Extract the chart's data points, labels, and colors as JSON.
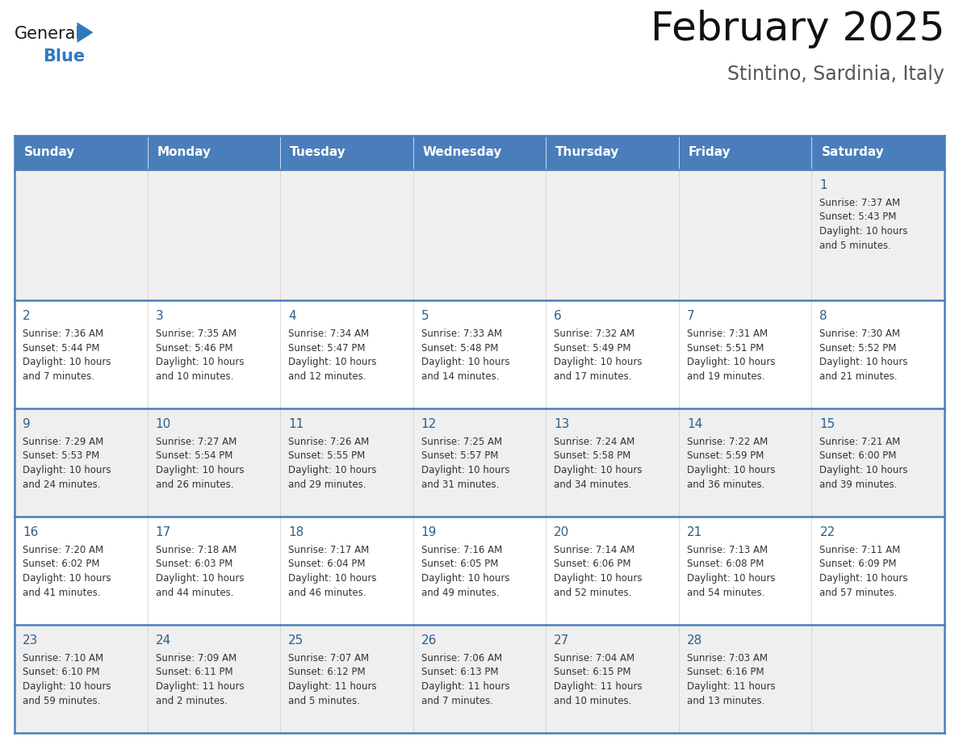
{
  "title": "February 2025",
  "subtitle": "Stintino, Sardinia, Italy",
  "header_bg": "#4a7ebb",
  "header_text": "#ffffff",
  "day_names": [
    "Sunday",
    "Monday",
    "Tuesday",
    "Wednesday",
    "Thursday",
    "Friday",
    "Saturday"
  ],
  "row_bg_odd": "#efefef",
  "row_bg_even": "#ffffff",
  "text_color": "#333333",
  "date_color": "#2c5f8a",
  "border_color": "#4a7ebb",
  "row_border_color": "#4a7ebb",
  "logo_general_color": "#1a1a1a",
  "logo_blue_color": "#2e7abf",
  "calendar_data": [
    [
      null,
      null,
      null,
      null,
      null,
      null,
      {
        "day": 1,
        "sunrise": "7:37 AM",
        "sunset": "5:43 PM",
        "daylight": "10 hours and 5 minutes."
      }
    ],
    [
      {
        "day": 2,
        "sunrise": "7:36 AM",
        "sunset": "5:44 PM",
        "daylight": "10 hours and 7 minutes."
      },
      {
        "day": 3,
        "sunrise": "7:35 AM",
        "sunset": "5:46 PM",
        "daylight": "10 hours and 10 minutes."
      },
      {
        "day": 4,
        "sunrise": "7:34 AM",
        "sunset": "5:47 PM",
        "daylight": "10 hours and 12 minutes."
      },
      {
        "day": 5,
        "sunrise": "7:33 AM",
        "sunset": "5:48 PM",
        "daylight": "10 hours and 14 minutes."
      },
      {
        "day": 6,
        "sunrise": "7:32 AM",
        "sunset": "5:49 PM",
        "daylight": "10 hours and 17 minutes."
      },
      {
        "day": 7,
        "sunrise": "7:31 AM",
        "sunset": "5:51 PM",
        "daylight": "10 hours and 19 minutes."
      },
      {
        "day": 8,
        "sunrise": "7:30 AM",
        "sunset": "5:52 PM",
        "daylight": "10 hours and 21 minutes."
      }
    ],
    [
      {
        "day": 9,
        "sunrise": "7:29 AM",
        "sunset": "5:53 PM",
        "daylight": "10 hours and 24 minutes."
      },
      {
        "day": 10,
        "sunrise": "7:27 AM",
        "sunset": "5:54 PM",
        "daylight": "10 hours and 26 minutes."
      },
      {
        "day": 11,
        "sunrise": "7:26 AM",
        "sunset": "5:55 PM",
        "daylight": "10 hours and 29 minutes."
      },
      {
        "day": 12,
        "sunrise": "7:25 AM",
        "sunset": "5:57 PM",
        "daylight": "10 hours and 31 minutes."
      },
      {
        "day": 13,
        "sunrise": "7:24 AM",
        "sunset": "5:58 PM",
        "daylight": "10 hours and 34 minutes."
      },
      {
        "day": 14,
        "sunrise": "7:22 AM",
        "sunset": "5:59 PM",
        "daylight": "10 hours and 36 minutes."
      },
      {
        "day": 15,
        "sunrise": "7:21 AM",
        "sunset": "6:00 PM",
        "daylight": "10 hours and 39 minutes."
      }
    ],
    [
      {
        "day": 16,
        "sunrise": "7:20 AM",
        "sunset": "6:02 PM",
        "daylight": "10 hours and 41 minutes."
      },
      {
        "day": 17,
        "sunrise": "7:18 AM",
        "sunset": "6:03 PM",
        "daylight": "10 hours and 44 minutes."
      },
      {
        "day": 18,
        "sunrise": "7:17 AM",
        "sunset": "6:04 PM",
        "daylight": "10 hours and 46 minutes."
      },
      {
        "day": 19,
        "sunrise": "7:16 AM",
        "sunset": "6:05 PM",
        "daylight": "10 hours and 49 minutes."
      },
      {
        "day": 20,
        "sunrise": "7:14 AM",
        "sunset": "6:06 PM",
        "daylight": "10 hours and 52 minutes."
      },
      {
        "day": 21,
        "sunrise": "7:13 AM",
        "sunset": "6:08 PM",
        "daylight": "10 hours and 54 minutes."
      },
      {
        "day": 22,
        "sunrise": "7:11 AM",
        "sunset": "6:09 PM",
        "daylight": "10 hours and 57 minutes."
      }
    ],
    [
      {
        "day": 23,
        "sunrise": "7:10 AM",
        "sunset": "6:10 PM",
        "daylight": "10 hours and 59 minutes."
      },
      {
        "day": 24,
        "sunrise": "7:09 AM",
        "sunset": "6:11 PM",
        "daylight": "11 hours and 2 minutes."
      },
      {
        "day": 25,
        "sunrise": "7:07 AM",
        "sunset": "6:12 PM",
        "daylight": "11 hours and 5 minutes."
      },
      {
        "day": 26,
        "sunrise": "7:06 AM",
        "sunset": "6:13 PM",
        "daylight": "11 hours and 7 minutes."
      },
      {
        "day": 27,
        "sunrise": "7:04 AM",
        "sunset": "6:15 PM",
        "daylight": "11 hours and 10 minutes."
      },
      {
        "day": 28,
        "sunrise": "7:03 AM",
        "sunset": "6:16 PM",
        "daylight": "11 hours and 13 minutes."
      },
      null
    ]
  ]
}
